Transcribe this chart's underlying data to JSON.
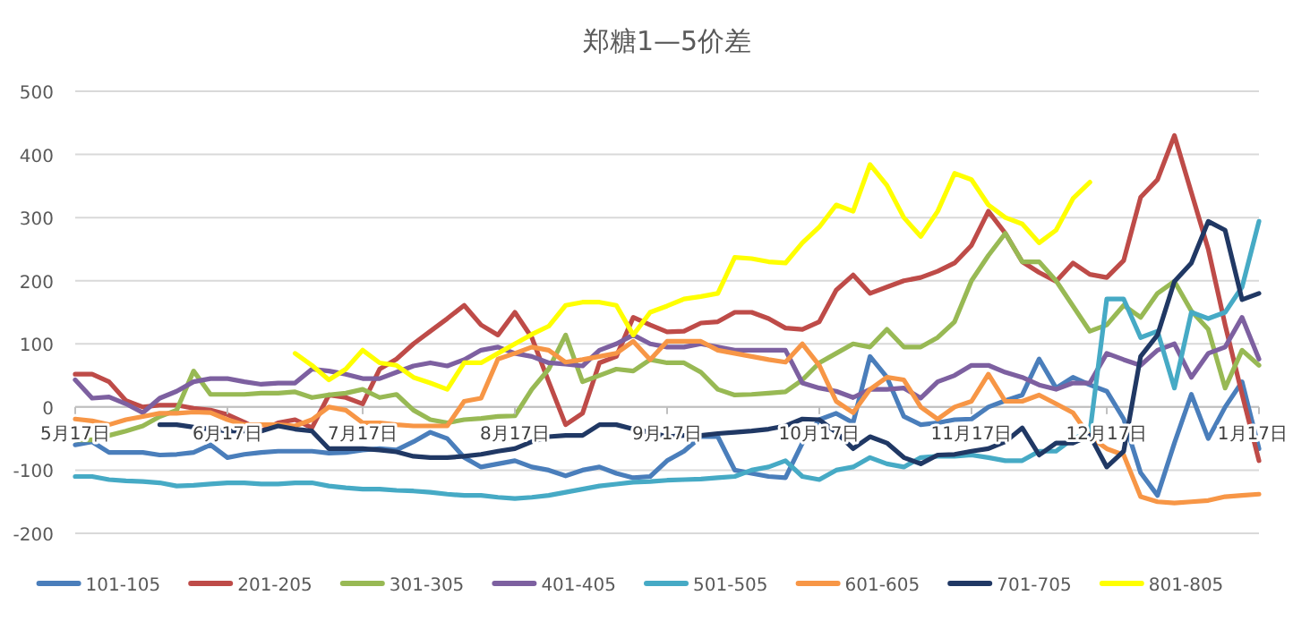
{
  "chart_data": {
    "type": "line",
    "title": "郑糖1—5价差",
    "categories": [
      "5月17日",
      null,
      null,
      null,
      null,
      null,
      null,
      null,
      null,
      "6月17日",
      null,
      null,
      null,
      null,
      null,
      null,
      null,
      "7月17日",
      null,
      null,
      null,
      null,
      null,
      null,
      null,
      null,
      "8月17日",
      null,
      null,
      null,
      null,
      null,
      null,
      null,
      null,
      "9月17日",
      null,
      null,
      null,
      null,
      null,
      null,
      null,
      null,
      "10月17日",
      null,
      null,
      null,
      null,
      null,
      null,
      null,
      null,
      "11月17日",
      null,
      null,
      null,
      null,
      null,
      null,
      null,
      "12月17日",
      null,
      null,
      null,
      null,
      null,
      null,
      null,
      null,
      "1月17日"
    ],
    "ylim": [
      -200,
      500
    ],
    "yticks": [
      -200,
      -100,
      0,
      100,
      200,
      300,
      400,
      500
    ],
    "grid": "y",
    "legend": "bottom",
    "series": [
      {
        "name": "101-105",
        "color": "#4a7ebb",
        "values": [
          -60,
          -55,
          -72,
          -72,
          -72,
          -76,
          -75,
          -72,
          -60,
          -80,
          -75,
          -72,
          -70,
          -70,
          -70,
          -73,
          -72,
          -68,
          -66,
          -68,
          -55,
          -40,
          -50,
          -80,
          -95,
          -90,
          -85,
          -95,
          -100,
          -109,
          -100,
          -95,
          -105,
          -112,
          -110,
          -85,
          -70,
          -47,
          -47,
          -100,
          -105,
          -110,
          -112,
          -57,
          -20,
          -10,
          -25,
          80,
          47,
          -15,
          -28,
          -25,
          -20,
          -19,
          0,
          10,
          19,
          76,
          30,
          47,
          35,
          25,
          -19,
          -104,
          -140,
          -57,
          20,
          -50,
          0,
          40,
          -66
        ]
      },
      {
        "name": "201-205",
        "color": "#be4b48",
        "values": [
          52,
          52,
          40,
          10,
          0,
          3,
          3,
          -2,
          -5,
          -12,
          -24,
          -38,
          -25,
          -20,
          -33,
          19,
          15,
          5,
          60,
          76,
          100,
          120,
          140,
          161,
          130,
          114,
          150,
          110,
          40,
          -28,
          -10,
          70,
          80,
          142,
          130,
          119,
          120,
          133,
          135,
          150,
          150,
          140,
          125,
          123,
          135,
          185,
          209,
          180,
          190,
          200,
          205,
          215,
          228,
          256,
          310,
          275,
          230,
          213,
          199,
          228,
          210,
          205,
          232,
          332,
          360,
          430,
          340,
          250,
          130,
          20,
          -85
        ]
      },
      {
        "name": "301-305",
        "color": "#98b954",
        "values": [
          -52,
          -52,
          -45,
          -38,
          -30,
          -15,
          -5,
          57,
          20,
          20,
          20,
          22,
          22,
          24,
          15,
          19,
          22,
          28,
          15,
          20,
          -5,
          -20,
          -25,
          -20,
          -18,
          -15,
          -14,
          28,
          60,
          114,
          40,
          50,
          60,
          57,
          75,
          70,
          70,
          55,
          28,
          19,
          20,
          22,
          24,
          43,
          70,
          85,
          100,
          95,
          123,
          95,
          95,
          110,
          135,
          200,
          240,
          275,
          230,
          230,
          200,
          160,
          120,
          130,
          161,
          142,
          180,
          199,
          152,
          123,
          30,
          90,
          66
        ]
      },
      {
        "name": "401-405",
        "color": "#7d60a0",
        "values": [
          43,
          14,
          16,
          5,
          -9,
          14,
          25,
          40,
          45,
          45,
          40,
          36,
          38,
          38,
          60,
          57,
          52,
          45,
          45,
          55,
          65,
          70,
          65,
          75,
          90,
          95,
          85,
          80,
          70,
          68,
          65,
          90,
          100,
          114,
          100,
          95,
          95,
          100,
          95,
          90,
          90,
          90,
          90,
          38,
          30,
          25,
          15,
          28,
          28,
          30,
          14,
          40,
          50,
          66,
          66,
          55,
          47,
          35,
          28,
          38,
          38,
          85,
          75,
          66,
          90,
          100,
          47,
          85,
          95,
          142,
          76
        ]
      },
      {
        "name": "501-505",
        "color": "#46aac5",
        "values": [
          -110,
          -110,
          -115,
          -117,
          -118,
          -120,
          -125,
          -124,
          -122,
          -120,
          -120,
          -122,
          -122,
          -120,
          -120,
          -125,
          -128,
          -130,
          -130,
          -132,
          -133,
          -135,
          -138,
          -140,
          -140,
          -143,
          -145,
          -143,
          -140,
          -135,
          -130,
          -125,
          -122,
          -119,
          -118,
          -116,
          -115,
          -114,
          -112,
          -110,
          -100,
          -95,
          -85,
          -110,
          -115,
          -100,
          -95,
          -80,
          -90,
          -95,
          -80,
          -78,
          -78,
          -76,
          -80,
          -85,
          -85,
          -70,
          -70,
          -50,
          -40,
          171,
          171,
          110,
          120,
          30,
          150,
          140,
          150,
          190,
          294
        ]
      },
      {
        "name": "601-605",
        "color": "#f79646",
        "values": [
          -19,
          -22,
          -28,
          -20,
          -15,
          -10,
          -10,
          -8,
          -9,
          -20,
          -28,
          -28,
          -28,
          -30,
          -20,
          0,
          -5,
          -25,
          -25,
          -28,
          -30,
          -30,
          -30,
          9,
          14,
          76,
          85,
          95,
          90,
          71,
          75,
          80,
          85,
          104,
          75,
          104,
          104,
          104,
          90,
          85,
          80,
          75,
          71,
          100,
          66,
          9,
          -9,
          28,
          47,
          43,
          0,
          -19,
          0,
          9,
          52,
          9,
          9,
          19,
          5,
          -9,
          -47,
          -66,
          -76,
          -142,
          -150,
          -152,
          -150,
          -148,
          -142,
          -140,
          -138
        ]
      },
      {
        "name": "701-705",
        "color": "#203864",
        "values": [
          null,
          null,
          null,
          null,
          null,
          -28,
          -28,
          -32,
          -35,
          -38,
          -38,
          -38,
          -30,
          -35,
          -38,
          -66,
          -66,
          -66,
          -68,
          -71,
          -78,
          -80,
          -80,
          -78,
          -75,
          -70,
          -66,
          -55,
          -47,
          -45,
          -45,
          -28,
          -28,
          -35,
          -40,
          -47,
          -45,
          -45,
          -42,
          -40,
          -38,
          -35,
          -30,
          -19,
          -20,
          -40,
          -66,
          -47,
          -57,
          -80,
          -90,
          -76,
          -75,
          -70,
          -66,
          -55,
          -33,
          -76,
          -57,
          -57,
          -45,
          -95,
          -70,
          80,
          114,
          199,
          228,
          294,
          280,
          170,
          180
        ]
      },
      {
        "name": "801-805",
        "color": "#ffff00",
        "values": [
          null,
          null,
          null,
          null,
          null,
          null,
          null,
          null,
          null,
          null,
          null,
          null,
          null,
          85,
          66,
          43,
          60,
          90,
          70,
          66,
          47,
          38,
          28,
          70,
          70,
          85,
          100,
          115,
          128,
          161,
          166,
          166,
          161,
          114,
          150,
          160,
          171,
          175,
          180,
          237,
          235,
          230,
          228,
          260,
          285,
          320,
          310,
          384,
          351,
          300,
          270,
          310,
          370,
          360,
          320,
          300,
          290,
          260,
          280,
          330,
          356,
          null,
          null,
          null,
          null,
          null,
          null,
          null,
          null,
          null,
          null
        ]
      }
    ]
  }
}
